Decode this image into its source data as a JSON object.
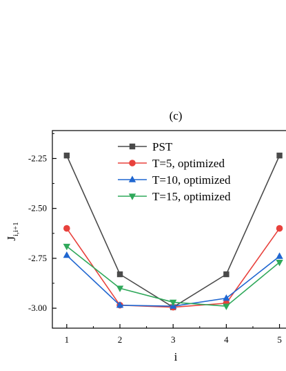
{
  "chart_data": {
    "type": "line",
    "title": "(c)",
    "xlabel": "i",
    "ylabel_main": "J",
    "ylabel_sub": "i,i+1",
    "x": [
      1,
      2,
      3,
      4,
      5
    ],
    "x_ticks": [
      "1",
      "2",
      "3",
      "4",
      "5"
    ],
    "y_ticks": [
      {
        "value": -2.25,
        "label": "-2.25"
      },
      {
        "value": -2.5,
        "label": "-2.50"
      },
      {
        "value": -2.75,
        "label": "-2.75"
      },
      {
        "value": -3.0,
        "label": "-3.00"
      }
    ],
    "xlim": [
      0.73,
      5.2
    ],
    "ylim": [
      -3.1,
      -2.11
    ],
    "grid": false,
    "legend_position": "top-center",
    "series": [
      {
        "name": "PST",
        "color": "#4a4a4a",
        "marker": "square",
        "values": [
          -2.235,
          -2.83,
          -2.995,
          -2.83,
          -2.235
        ]
      },
      {
        "name": "T=5, optimized",
        "color": "#e8413c",
        "marker": "circle",
        "values": [
          -2.6,
          -2.985,
          -2.995,
          -2.975,
          -2.6
        ]
      },
      {
        "name": "T=10, optimized",
        "color": "#1f66d0",
        "marker": "triangle-up",
        "values": [
          -2.735,
          -2.985,
          -2.99,
          -2.95,
          -2.74
        ]
      },
      {
        "name": "T=15, optimized",
        "color": "#2fa85a",
        "marker": "triangle-down",
        "values": [
          -2.69,
          -2.9,
          -2.97,
          -2.99,
          -2.77
        ]
      }
    ]
  }
}
